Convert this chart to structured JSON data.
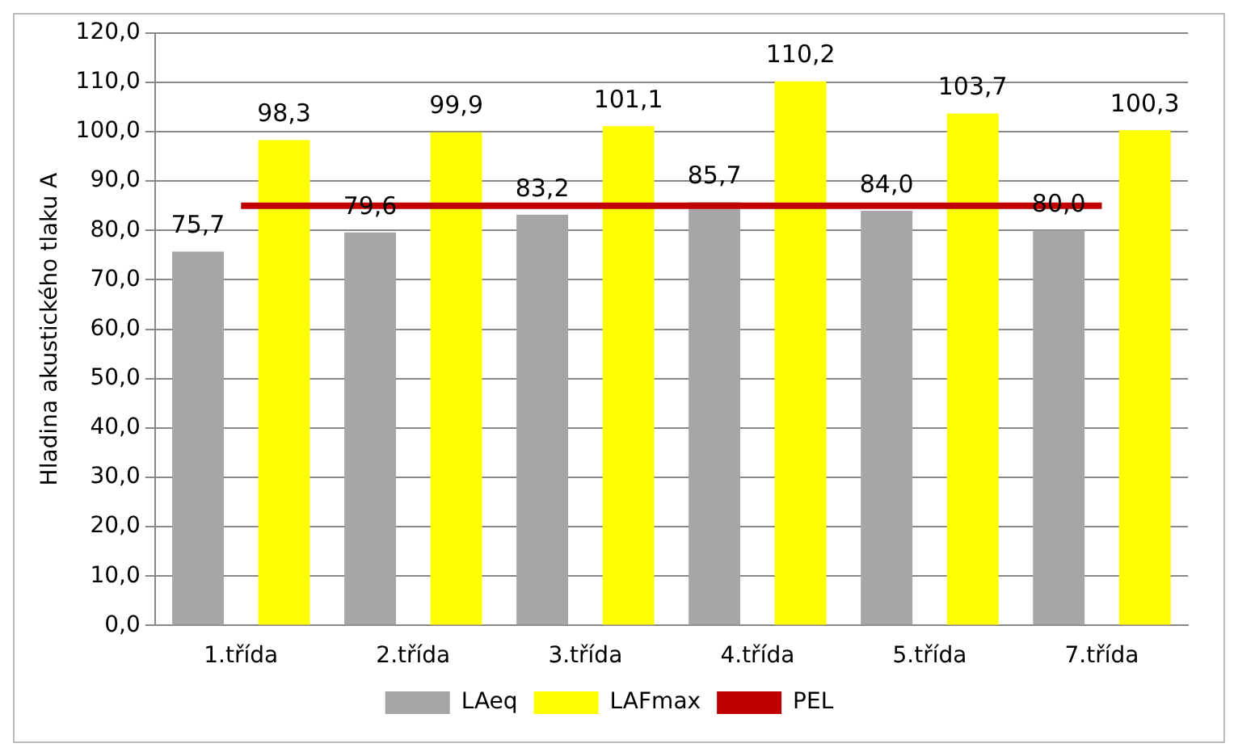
{
  "chart_data": {
    "type": "bar",
    "ylabel": "Hladina akustického tlaku A",
    "categories": [
      "1.třída",
      "2.třída",
      "3.třída",
      "4.třída",
      "5.třída",
      "7.třída"
    ],
    "series": [
      {
        "name": "LAeq",
        "color": "#a6a6a6",
        "values": [
          75.7,
          79.6,
          83.2,
          85.7,
          84.0,
          80.0
        ],
        "value_labels": [
          "75,7",
          "79,6",
          "83,2",
          "85,7",
          "84,0",
          "80,0"
        ]
      },
      {
        "name": "LAFmax",
        "color": "#ffff00",
        "values": [
          98.3,
          99.9,
          101.1,
          110.2,
          103.7,
          100.3
        ],
        "value_labels": [
          "98,3",
          "99,9",
          "101,1",
          "110,2",
          "103,7",
          "100,3"
        ]
      },
      {
        "name": "PEL",
        "type": "line",
        "color": "#c00000",
        "values": [
          85,
          85,
          85,
          85,
          85,
          85
        ],
        "marker": "none"
      }
    ],
    "ylim": [
      0,
      120
    ],
    "yticks": [
      {
        "value": 0,
        "label": "0,0"
      },
      {
        "value": 10,
        "label": "10,0"
      },
      {
        "value": 20,
        "label": "20,0"
      },
      {
        "value": 30,
        "label": "30,0"
      },
      {
        "value": 40,
        "label": "40,0"
      },
      {
        "value": 50,
        "label": "50,0"
      },
      {
        "value": 60,
        "label": "60,0"
      },
      {
        "value": 70,
        "label": "70,0"
      },
      {
        "value": 80,
        "label": "80,0"
      },
      {
        "value": 90,
        "label": "90,0"
      },
      {
        "value": 100,
        "label": "100,0"
      },
      {
        "value": 110,
        "label": "110,0"
      },
      {
        "value": 120,
        "label": "120,0"
      }
    ],
    "grid": "y",
    "legend": "bottom"
  }
}
